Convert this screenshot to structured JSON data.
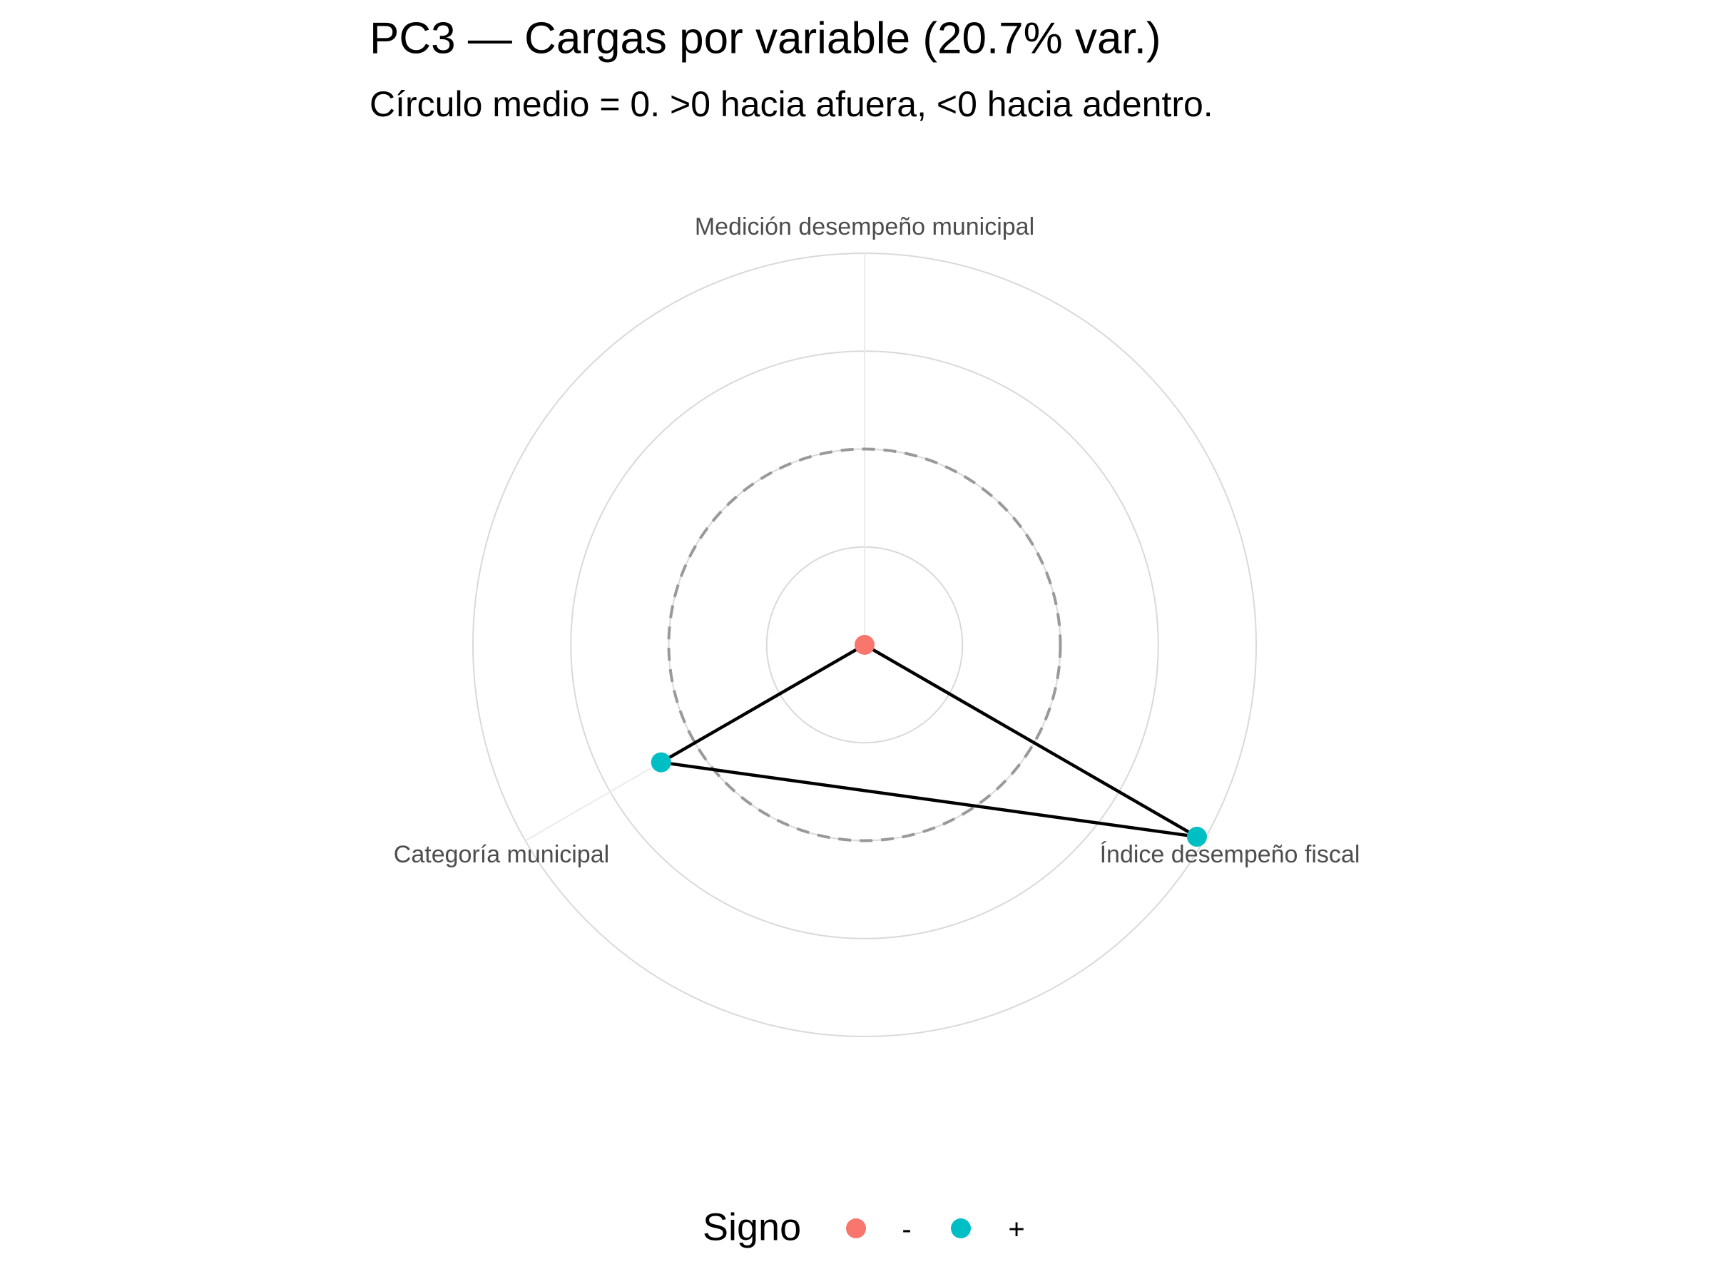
{
  "chart_data": {
    "type": "radar",
    "title": "PC3 — Cargas por variable (20.7% var.)",
    "subtitle": "Círculo medio = 0. >0 hacia afuera, <0 hacia adentro.",
    "categories": [
      "Medición desempeño municipal",
      "Índice desempeño fiscal",
      "Categoría municipal"
    ],
    "values": [
      -0.5,
      0.48,
      0.1
    ],
    "ylim": [
      -0.5,
      0.5
    ],
    "yticks": [
      -0.25,
      0,
      0.25,
      0.5
    ],
    "reference_value": 0,
    "line_color": "#000000",
    "legend_title": "Signo",
    "legend": [
      {
        "name": "-",
        "color": "#F8766D"
      },
      {
        "name": "+",
        "color": "#00BFC4"
      }
    ],
    "legend_position": "bottom"
  }
}
